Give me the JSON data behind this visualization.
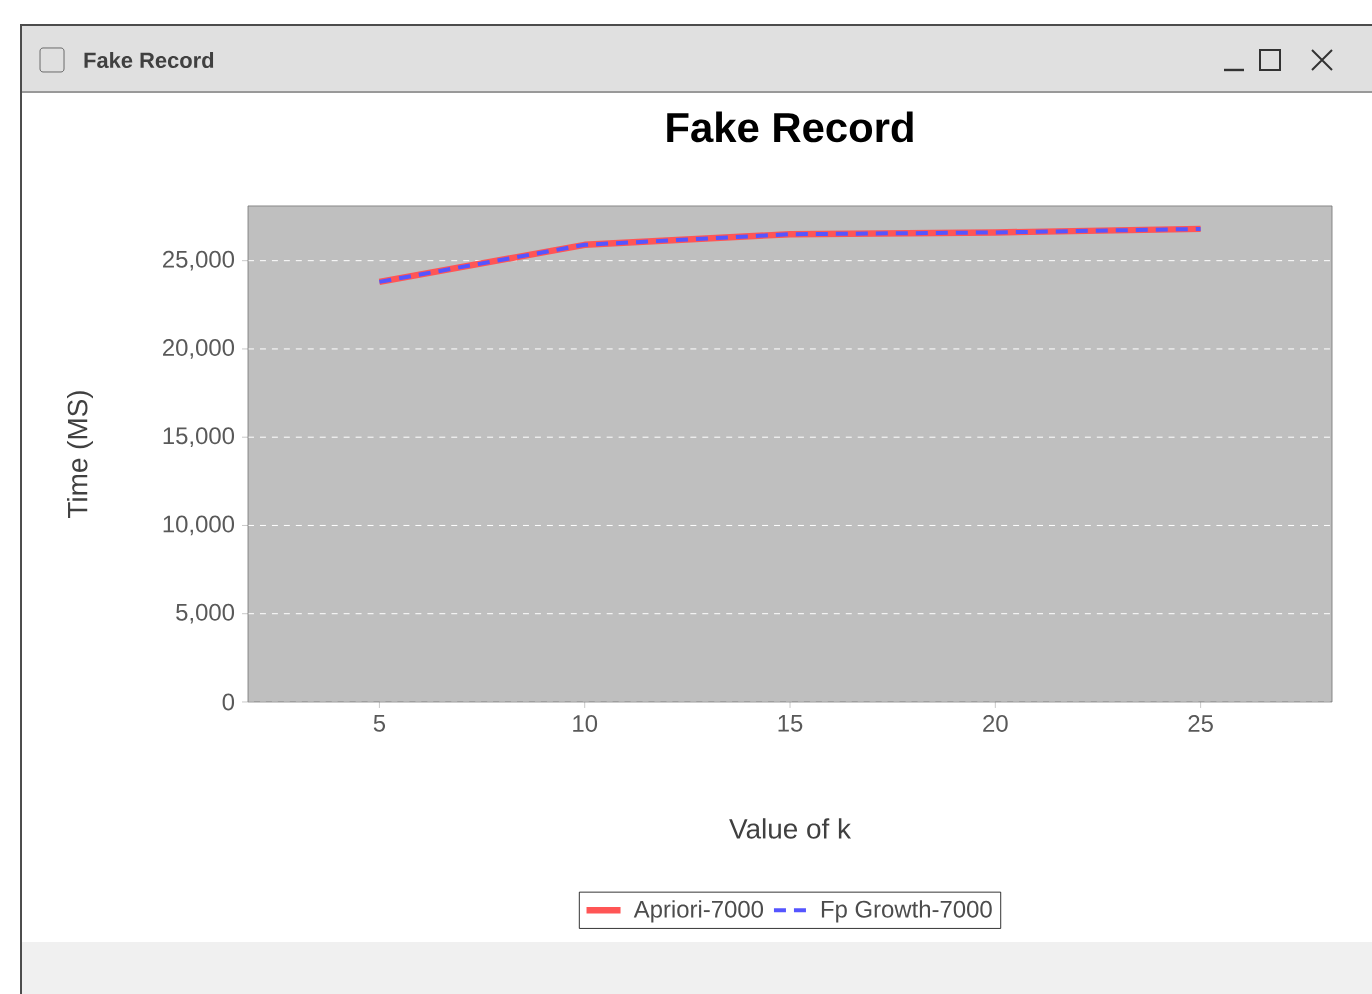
{
  "chart_data": {
    "type": "line",
    "title": "Fake Record",
    "xlabel": "Value of k",
    "ylabel": "Time (MS)",
    "annotations": [
      "Fake Record"
    ],
    "x": [
      5,
      10,
      15,
      20,
      25
    ],
    "series": [
      {
        "name": "Apriori-7000",
        "color": "#ff5555",
        "line_style": "solid",
        "values": [
          23800,
          25900,
          26500,
          26600,
          26800
        ]
      },
      {
        "name": "Fp Growth-7000",
        "color": "#5555ff",
        "line_style": "dashed",
        "values": [
          23800,
          25900,
          26500,
          26600,
          26800
        ]
      }
    ],
    "xlim": [
      1.8,
      28.2
    ],
    "ylim": [
      0,
      28100
    ],
    "xticks": [
      5,
      10,
      15,
      20,
      25
    ],
    "yticks": [
      {
        "value": 0,
        "label": "0"
      },
      {
        "value": 5000,
        "label": "5,000"
      },
      {
        "value": 10000,
        "label": "10,000"
      },
      {
        "value": 15000,
        "label": "15,000"
      },
      {
        "value": 20000,
        "label": "20,000"
      },
      {
        "value": 25000,
        "label": "25,000"
      }
    ],
    "grid": "y",
    "legend": "bottom",
    "marker": "none"
  }
}
